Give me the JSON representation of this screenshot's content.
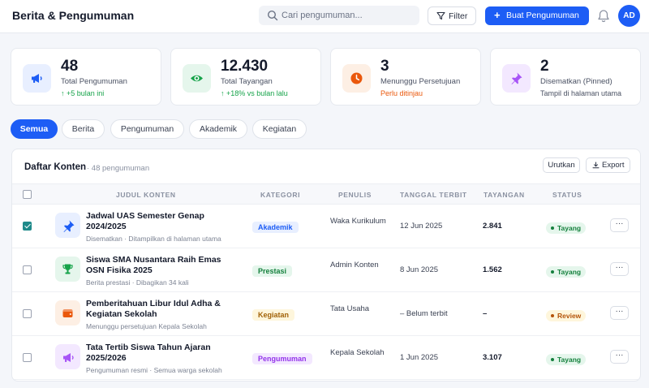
{
  "header": {
    "title": "Berita & Pengumuman",
    "search_placeholder": "Cari pengumuman...",
    "filter_label": "Filter",
    "create_label": "Buat Pengumuman",
    "avatar_initials": "AD"
  },
  "stats": [
    {
      "value": "48",
      "label": "Total Pengumuman",
      "sub": "↑ +5 bulan ini",
      "sub_color": "#16a34a",
      "icon": "megaphone-icon",
      "color": "#1d5df5",
      "bg": "#e8efff"
    },
    {
      "value": "12.430",
      "label": "Total Tayangan",
      "sub": "↑ +18% vs bulan lalu",
      "sub_color": "#16a34a",
      "icon": "eye-icon",
      "color": "#16a34a",
      "bg": "#e5f6ec"
    },
    {
      "value": "3",
      "label": "Menunggu Persetujuan",
      "sub": "Perlu ditinjau",
      "sub_color": "#ea580c",
      "icon": "clock-icon",
      "color": "#ea580c",
      "bg": "#fdefe4"
    },
    {
      "value": "2",
      "label": "Disematkan (Pinned)",
      "sub": "Tampil di halaman utama",
      "sub_color": "#4a5163",
      "icon": "pin-icon",
      "color": "#a855f7",
      "bg": "#f3e8ff"
    }
  ],
  "tabs": [
    "Semua",
    "Berita",
    "Pengumuman",
    "Akademik",
    "Kegiatan"
  ],
  "active_tab": "Semua",
  "panel": {
    "title": "Daftar Konten",
    "count": "· 48 pengumuman",
    "sort_label": "Urutkan",
    "export_label": "Export"
  },
  "columns": [
    "JUDUL KONTEN",
    "KATEGORI",
    "PENULIS",
    "TANGGAL TERBIT",
    "TAYANGAN",
    "STATUS"
  ],
  "rows": [
    {
      "checked": true,
      "icon": "pin-icon",
      "thumb_bg": "#e8efff",
      "thumb_color": "#1d5df5",
      "title": "Jadwal UAS Semester Genap 2024/2025",
      "meta": "Disematkan · Ditampilkan di halaman utama",
      "category": "Akademik",
      "cat_color": "#1d5df5",
      "cat_bg": "#e8efff",
      "author": "Waka Kurikulum",
      "date": "12 Jun 2025",
      "views": "2.841",
      "status": "Tayang",
      "status_color": "#15803d",
      "status_bg": "#e5f6ec",
      "more": "···"
    },
    {
      "checked": false,
      "icon": "trophy-icon",
      "thumb_bg": "#e5f6ec",
      "thumb_color": "#16a34a",
      "title": "Siswa SMA Nusantara Raih Emas OSN Fisika 2025",
      "meta": "Berita prestasi · Dibagikan 34 kali",
      "category": "Prestasi",
      "cat_color": "#15803d",
      "cat_bg": "#e5f6ec",
      "author": "Admin Konten",
      "date": "8 Jun 2025",
      "views": "1.562",
      "status": "Tayang",
      "status_color": "#15803d",
      "status_bg": "#e5f6ec",
      "more": "···"
    },
    {
      "checked": false,
      "icon": "wallet-icon",
      "thumb_bg": "#fdefe4",
      "thumb_color": "#ea580c",
      "title": "Pemberitahuan Libur Idul Adha & Kegiatan Sekolah",
      "meta": "Menunggu persetujuan Kepala Sekolah",
      "category": "Kegiatan",
      "cat_color": "#a16207",
      "cat_bg": "#fef6dc",
      "author": "Tata Usaha",
      "date": "– Belum terbit",
      "views": "–",
      "status": "Review",
      "status_color": "#b45309",
      "status_bg": "#fef6dc",
      "more": "···"
    },
    {
      "checked": false,
      "icon": "megaphone-icon",
      "thumb_bg": "#f3e8ff",
      "thumb_color": "#a855f7",
      "title": "Tata Tertib Siswa Tahun Ajaran 2025/2026",
      "meta": "Pengumuman resmi · Semua warga sekolah",
      "category": "Pengumuman",
      "cat_color": "#9333ea",
      "cat_bg": "#f3e8ff",
      "author": "Kepala Sekolah",
      "date": "1 Jun 2025",
      "views": "3.107",
      "status": "Tayang",
      "status_color": "#15803d",
      "status_bg": "#e5f6ec",
      "more": "···"
    }
  ]
}
